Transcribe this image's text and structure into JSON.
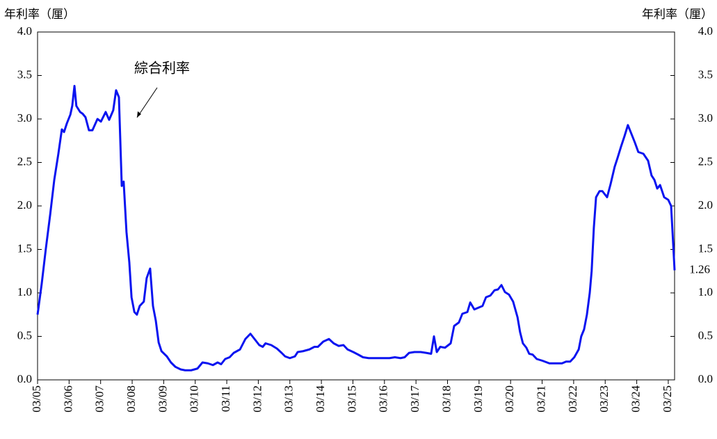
{
  "chart_data": {
    "type": "line",
    "y_label": "年利率（厘）",
    "y2_label": "年利率（厘）",
    "series": [
      {
        "name": "綜合利率",
        "color": "#0a14f0",
        "x": [
          2005.17,
          2005.3,
          2005.43,
          2005.57,
          2005.7,
          2005.83,
          2005.94,
          2006.01,
          2006.1,
          2006.21,
          2006.27,
          2006.34,
          2006.4,
          2006.52,
          2006.6,
          2006.69,
          2006.8,
          2006.91,
          2007.07,
          2007.18,
          2007.33,
          2007.44,
          2007.57,
          2007.66,
          2007.75,
          2007.84,
          2007.9,
          2007.99,
          2008.08,
          2008.15,
          2008.24,
          2008.32,
          2008.41,
          2008.54,
          2008.63,
          2008.74,
          2008.83,
          2008.92,
          2009.01,
          2009.1,
          2009.27,
          2009.4,
          2009.54,
          2009.71,
          2009.85,
          2010.04,
          2010.24,
          2010.4,
          2010.57,
          2010.73,
          2010.88,
          2010.99,
          2011.12,
          2011.26,
          2011.39,
          2011.59,
          2011.76,
          2011.92,
          2012.05,
          2012.2,
          2012.31,
          2012.4,
          2012.58,
          2012.76,
          2012.91,
          2013.02,
          2013.17,
          2013.33,
          2013.42,
          2013.59,
          2013.79,
          2013.95,
          2014.06,
          2014.23,
          2014.41,
          2014.56,
          2014.72,
          2014.87,
          2015.0,
          2015.18,
          2015.34,
          2015.49,
          2015.67,
          2015.89,
          2016.11,
          2016.33,
          2016.5,
          2016.68,
          2016.81,
          2016.95,
          2017.12,
          2017.32,
          2017.5,
          2017.65,
          2017.74,
          2017.83,
          2017.94,
          2018.09,
          2018.27,
          2018.38,
          2018.53,
          2018.64,
          2018.8,
          2018.89,
          2019.02,
          2019.15,
          2019.28,
          2019.39,
          2019.53,
          2019.66,
          2019.77,
          2019.88,
          2019.99,
          2020.12,
          2020.25,
          2020.39,
          2020.47,
          2020.56,
          2020.67,
          2020.76,
          2020.87,
          2021.0,
          2021.18,
          2021.4,
          2021.62,
          2021.8,
          2021.93,
          2022.06,
          2022.19,
          2022.33,
          2022.41,
          2022.5,
          2022.59,
          2022.68,
          2022.74,
          2022.81,
          2022.88,
          2022.99,
          2023.08,
          2023.23,
          2023.34,
          2023.47,
          2023.56,
          2023.67,
          2023.78,
          2023.89,
          2024.0,
          2024.11,
          2024.22,
          2024.38,
          2024.53,
          2024.64,
          2024.73,
          2024.82,
          2024.91,
          2025.04,
          2025.17,
          2025.26,
          2025.32,
          2025.37
        ],
        "values": [
          0.75,
          1.1,
          1.5,
          1.9,
          2.3,
          2.6,
          2.88,
          2.85,
          2.95,
          3.05,
          3.15,
          3.38,
          3.15,
          3.08,
          3.06,
          3.02,
          2.87,
          2.87,
          3.0,
          2.97,
          3.08,
          2.99,
          3.1,
          3.33,
          3.25,
          2.23,
          2.28,
          1.7,
          1.35,
          0.95,
          0.78,
          0.75,
          0.85,
          0.9,
          1.17,
          1.28,
          0.85,
          0.68,
          0.43,
          0.33,
          0.27,
          0.2,
          0.15,
          0.12,
          0.11,
          0.11,
          0.13,
          0.2,
          0.19,
          0.17,
          0.2,
          0.18,
          0.24,
          0.26,
          0.31,
          0.35,
          0.47,
          0.53,
          0.47,
          0.4,
          0.38,
          0.42,
          0.4,
          0.36,
          0.31,
          0.27,
          0.25,
          0.27,
          0.32,
          0.33,
          0.35,
          0.38,
          0.38,
          0.44,
          0.47,
          0.42,
          0.39,
          0.4,
          0.35,
          0.32,
          0.29,
          0.26,
          0.25,
          0.25,
          0.25,
          0.25,
          0.26,
          0.25,
          0.26,
          0.31,
          0.32,
          0.32,
          0.31,
          0.3,
          0.5,
          0.32,
          0.38,
          0.37,
          0.42,
          0.62,
          0.66,
          0.76,
          0.78,
          0.89,
          0.81,
          0.83,
          0.85,
          0.95,
          0.97,
          1.03,
          1.04,
          1.09,
          1.01,
          0.98,
          0.9,
          0.72,
          0.55,
          0.42,
          0.37,
          0.3,
          0.29,
          0.24,
          0.22,
          0.19,
          0.19,
          0.19,
          0.21,
          0.21,
          0.26,
          0.35,
          0.5,
          0.58,
          0.75,
          1.0,
          1.25,
          1.75,
          2.1,
          2.17,
          2.17,
          2.1,
          2.25,
          2.45,
          2.55,
          2.68,
          2.8,
          2.93,
          2.83,
          2.73,
          2.62,
          2.6,
          2.52,
          2.35,
          2.3,
          2.2,
          2.24,
          2.1,
          2.07,
          2.0,
          1.6,
          1.26
        ]
      }
    ],
    "xlim": [
      2005.17,
      2025.37
    ],
    "xticks": [
      {
        "value": 2005.17,
        "label": "03/05"
      },
      {
        "value": 2006.17,
        "label": "03/06"
      },
      {
        "value": 2007.17,
        "label": "03/07"
      },
      {
        "value": 2008.17,
        "label": "03/08"
      },
      {
        "value": 2009.17,
        "label": "03/09"
      },
      {
        "value": 2010.17,
        "label": "03/10"
      },
      {
        "value": 2011.17,
        "label": "03/11"
      },
      {
        "value": 2012.17,
        "label": "03/12"
      },
      {
        "value": 2013.17,
        "label": "03/13"
      },
      {
        "value": 2014.17,
        "label": "03/14"
      },
      {
        "value": 2015.17,
        "label": "03/15"
      },
      {
        "value": 2016.17,
        "label": "03/16"
      },
      {
        "value": 2017.17,
        "label": "03/17"
      },
      {
        "value": 2018.17,
        "label": "03/18"
      },
      {
        "value": 2019.17,
        "label": "03/19"
      },
      {
        "value": 2020.17,
        "label": "03/20"
      },
      {
        "value": 2021.17,
        "label": "03/21"
      },
      {
        "value": 2022.17,
        "label": "03/22"
      },
      {
        "value": 2023.17,
        "label": "03/23"
      },
      {
        "value": 2024.17,
        "label": "03/24"
      },
      {
        "value": 2025.17,
        "label": "03/25"
      }
    ],
    "ylim": [
      0,
      4
    ],
    "yticks": [
      {
        "value": 0,
        "label": "0.0"
      },
      0.5,
      {
        "value": 1,
        "label": "1.0"
      },
      1.5,
      {
        "value": 2,
        "label": "2.0"
      },
      2.5,
      {
        "value": 3,
        "label": "3.0"
      },
      3.5,
      {
        "value": 4,
        "label": "4.0"
      }
    ],
    "y2lim": [
      0,
      4
    ],
    "y2ticks": [
      {
        "value": 0,
        "label": "0.0"
      },
      0.5,
      {
        "value": 1,
        "label": "1.0"
      },
      1.5,
      {
        "value": 2,
        "label": "2.0"
      },
      2.5,
      {
        "value": 3,
        "label": "3.0"
      },
      3.5,
      {
        "value": 4,
        "label": "4.0"
      }
    ]
  }
}
